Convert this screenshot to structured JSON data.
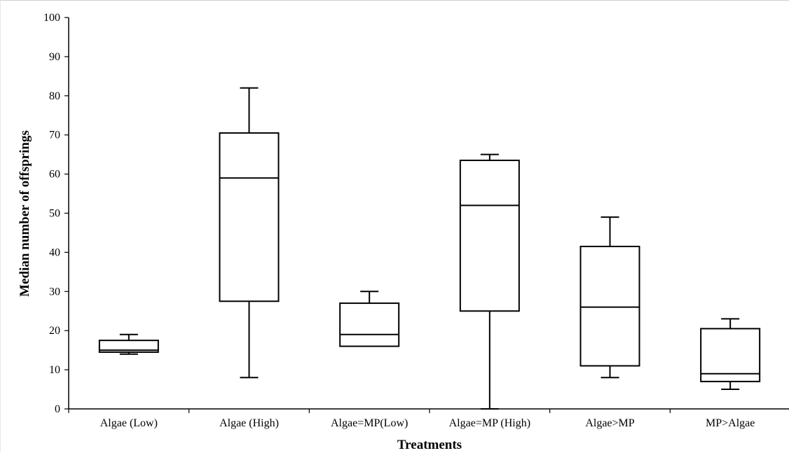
{
  "chart_data": {
    "type": "box",
    "title": "",
    "xlabel": "Treatments",
    "ylabel": "Median  number of offsprings",
    "ylim": [
      0,
      100
    ],
    "yticks": [
      "0",
      "10",
      "20",
      "30",
      "40",
      "50",
      "60",
      "70",
      "80",
      "90",
      "100"
    ],
    "grid": false,
    "legend": "none",
    "categories": [
      "Algae (Low)",
      "Algae (High)",
      "Algae=MP(Low)",
      "Algae=MP (High)",
      "Algae>MP",
      "MP>Algae"
    ],
    "boxes": [
      {
        "min": 14,
        "q1": 14.5,
        "median": 15,
        "q3": 17.5,
        "max": 19
      },
      {
        "min": 8,
        "q1": 27.5,
        "median": 59,
        "q3": 70.5,
        "max": 82
      },
      {
        "min": 16,
        "q1": 16,
        "median": 19,
        "q3": 27,
        "max": 30
      },
      {
        "min": 0,
        "q1": 25,
        "median": 52,
        "q3": 63.5,
        "max": 65
      },
      {
        "min": 8,
        "q1": 11,
        "median": 26,
        "q3": 41.5,
        "max": 49
      },
      {
        "min": 5,
        "q1": 7,
        "median": 9,
        "q3": 20.5,
        "max": 23
      }
    ]
  }
}
